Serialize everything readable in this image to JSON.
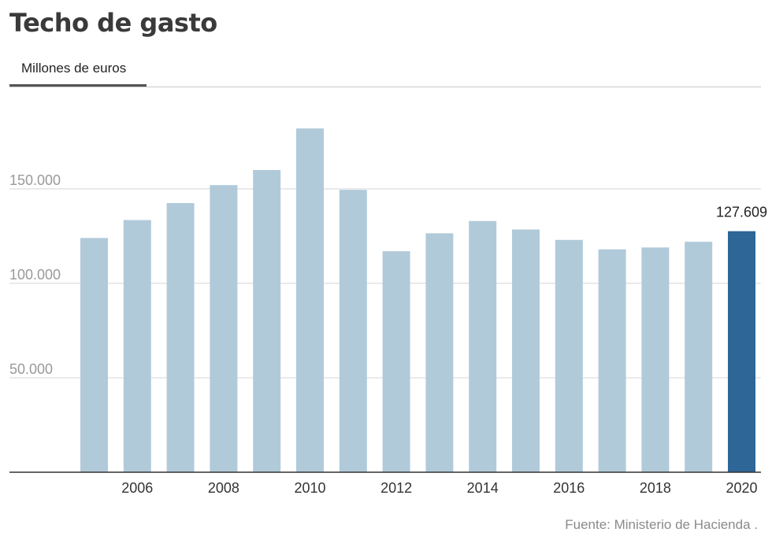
{
  "header": {
    "title": "Techo de gasto",
    "tab_label": "Millones de euros"
  },
  "footer": {
    "source": "Fuente: Ministerio de Hacienda ."
  },
  "colors": {
    "bar": "#b1cada",
    "bar_highlight": "#2e6697",
    "grid": "#d6d6d6",
    "axis": "#333333",
    "ytick_text": "#999999",
    "xtick_text": "#333333"
  },
  "chart_data": {
    "type": "bar",
    "title": "Techo de gasto",
    "subtitle": "Millones de euros",
    "xlabel": "",
    "ylabel": "",
    "categories": [
      "2005",
      "2006",
      "2007",
      "2008",
      "2009",
      "2010",
      "2011",
      "2012",
      "2013",
      "2014",
      "2015",
      "2016",
      "2017",
      "2018",
      "2019",
      "2020"
    ],
    "values": [
      124000,
      133500,
      142500,
      152000,
      160000,
      182000,
      149500,
      117000,
      126500,
      133000,
      128500,
      123000,
      118000,
      119000,
      122000,
      127609
    ],
    "ylim": [
      0,
      200000
    ],
    "yticks": [
      {
        "value": 50000,
        "label": "50.000"
      },
      {
        "value": 100000,
        "label": "100.000"
      },
      {
        "value": 150000,
        "label": "150.000"
      }
    ],
    "xticks": [
      {
        "category": "2006",
        "label": "2006"
      },
      {
        "category": "2008",
        "label": "2008"
      },
      {
        "category": "2010",
        "label": "2010"
      },
      {
        "category": "2012",
        "label": "2012"
      },
      {
        "category": "2014",
        "label": "2014"
      },
      {
        "category": "2016",
        "label": "2016"
      },
      {
        "category": "2018",
        "label": "2018"
      },
      {
        "category": "2020",
        "label": "2020"
      }
    ],
    "highlight": {
      "category": "2020",
      "label": "127.609"
    },
    "grid": true,
    "legend": "none"
  }
}
